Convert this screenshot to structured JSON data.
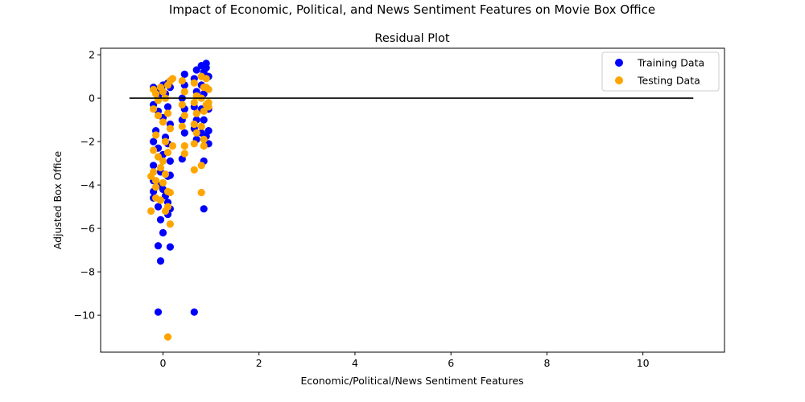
{
  "suptitle": "Impact of Economic, Political, and News Sentiment Features on Movie Box Office",
  "chart_data": {
    "type": "scatter",
    "title": "Residual Plot",
    "xlabel": "Economic/Political/News Sentiment Features",
    "ylabel": "Adjusted Box Office",
    "xlim": [
      -1.3,
      11.7
    ],
    "ylim": [
      -11.7,
      2.3
    ],
    "xticks": [
      0,
      2,
      4,
      6,
      8,
      10
    ],
    "xtick_labels": [
      "0",
      "2",
      "4",
      "6",
      "8",
      "10"
    ],
    "yticks": [
      2,
      0,
      -2,
      -4,
      -6,
      -8,
      -10
    ],
    "ytick_labels": [
      "2",
      "0",
      "−2",
      "−4",
      "−6",
      "−8",
      "−10"
    ],
    "grid": false,
    "legend_position": "top-right",
    "hline": {
      "y": 0,
      "xmin": -0.7,
      "xmax": 11.05,
      "color": "#000000"
    },
    "series": [
      {
        "name": "Training Data",
        "color": "#0000ff",
        "points": [
          [
            -0.2,
            0.5
          ],
          [
            -0.15,
            0.3
          ],
          [
            -0.1,
            0.1
          ],
          [
            -0.05,
            0.4
          ],
          [
            0.0,
            0.6
          ],
          [
            0.05,
            0.2
          ],
          [
            0.1,
            0.7
          ],
          [
            0.15,
            0.5
          ],
          [
            -0.2,
            -0.3
          ],
          [
            -0.1,
            -0.6
          ],
          [
            0.0,
            -0.9
          ],
          [
            0.1,
            -0.4
          ],
          [
            0.15,
            -1.2
          ],
          [
            -0.15,
            -1.5
          ],
          [
            0.05,
            -1.8
          ],
          [
            -0.2,
            -2.0
          ],
          [
            -0.1,
            -2.3
          ],
          [
            0.0,
            -2.6
          ],
          [
            0.1,
            -2.1
          ],
          [
            0.15,
            -2.9
          ],
          [
            -0.2,
            -3.1
          ],
          [
            -0.05,
            -3.4
          ],
          [
            0.1,
            -3.6
          ],
          [
            0.15,
            -3.55
          ],
          [
            -0.2,
            -3.8
          ],
          [
            -0.1,
            -4.0
          ],
          [
            0.0,
            -4.2
          ],
          [
            -0.2,
            -4.3
          ],
          [
            0.05,
            -4.5
          ],
          [
            -0.2,
            -4.6
          ],
          [
            0.1,
            -4.8
          ],
          [
            -0.1,
            -5.0
          ],
          [
            0.15,
            -5.1
          ],
          [
            0.1,
            -5.35
          ],
          [
            -0.05,
            -5.6
          ],
          [
            0.0,
            -6.2
          ],
          [
            -0.1,
            -6.8
          ],
          [
            0.15,
            -6.85
          ],
          [
            -0.05,
            -7.5
          ],
          [
            -0.1,
            -9.85
          ],
          [
            0.65,
            -9.85
          ],
          [
            0.45,
            1.1
          ],
          [
            0.45,
            0.6
          ],
          [
            0.4,
            0.0
          ],
          [
            0.45,
            -0.5
          ],
          [
            0.4,
            -1.0
          ],
          [
            0.45,
            -1.6
          ],
          [
            0.4,
            -2.8
          ],
          [
            0.65,
            0.9
          ],
          [
            0.7,
            0.3
          ],
          [
            0.65,
            -0.4
          ],
          [
            0.7,
            -1.0
          ],
          [
            0.65,
            -1.4
          ],
          [
            0.7,
            -1.9
          ],
          [
            0.8,
            1.5
          ],
          [
            0.85,
            1.2
          ],
          [
            0.8,
            0.6
          ],
          [
            0.85,
            0.2
          ],
          [
            0.8,
            -0.5
          ],
          [
            0.85,
            -1.0
          ],
          [
            0.8,
            -1.6
          ],
          [
            0.85,
            -2.9
          ],
          [
            0.85,
            -5.1
          ],
          [
            0.9,
            1.6
          ],
          [
            0.9,
            1.4
          ],
          [
            0.95,
            1.0
          ],
          [
            0.95,
            -0.5
          ],
          [
            0.95,
            -1.5
          ],
          [
            0.9,
            -1.75
          ],
          [
            0.95,
            -2.1
          ],
          [
            0.7,
            1.3
          ]
        ]
      },
      {
        "name": "Testing Data",
        "color": "#ffa500",
        "points": [
          [
            -0.2,
            0.4
          ],
          [
            -0.15,
            0.2
          ],
          [
            -0.1,
            -0.1
          ],
          [
            -0.05,
            0.5
          ],
          [
            0.0,
            0.3
          ],
          [
            0.05,
            0.0
          ],
          [
            0.1,
            0.6
          ],
          [
            0.15,
            0.8
          ],
          [
            0.2,
            0.9
          ],
          [
            -0.2,
            -0.5
          ],
          [
            -0.1,
            -0.8
          ],
          [
            0.0,
            -1.1
          ],
          [
            0.1,
            -0.7
          ],
          [
            0.15,
            -1.4
          ],
          [
            -0.15,
            -1.7
          ],
          [
            0.05,
            -2.0
          ],
          [
            -0.2,
            -2.4
          ],
          [
            -0.1,
            -2.7
          ],
          [
            0.0,
            -2.9
          ],
          [
            0.1,
            -2.5
          ],
          [
            0.2,
            -2.2
          ],
          [
            -0.2,
            -3.4
          ],
          [
            -0.05,
            -3.2
          ],
          [
            0.05,
            -3.5
          ],
          [
            -0.25,
            -3.6
          ],
          [
            -0.15,
            -3.8
          ],
          [
            0.0,
            -3.9
          ],
          [
            -0.15,
            -4.1
          ],
          [
            0.1,
            -4.3
          ],
          [
            0.15,
            -4.35
          ],
          [
            -0.15,
            -4.6
          ],
          [
            -0.05,
            -4.7
          ],
          [
            0.1,
            -5.0
          ],
          [
            0.05,
            -5.2
          ],
          [
            -0.25,
            -5.2
          ],
          [
            0.15,
            -5.8
          ],
          [
            0.1,
            -11.0
          ],
          [
            0.4,
            0.8
          ],
          [
            0.45,
            0.3
          ],
          [
            0.4,
            -0.3
          ],
          [
            0.45,
            -0.8
          ],
          [
            0.4,
            -1.3
          ],
          [
            0.45,
            -2.2
          ],
          [
            0.45,
            -2.55
          ],
          [
            0.65,
            0.7
          ],
          [
            0.7,
            0.1
          ],
          [
            0.65,
            -0.2
          ],
          [
            0.7,
            -0.7
          ],
          [
            0.65,
            -1.2
          ],
          [
            0.7,
            -1.6
          ],
          [
            0.65,
            -2.1
          ],
          [
            0.65,
            -3.3
          ],
          [
            0.8,
            1.0
          ],
          [
            0.85,
            0.5
          ],
          [
            0.8,
            0.0
          ],
          [
            0.85,
            -0.6
          ],
          [
            0.8,
            -1.3
          ],
          [
            0.85,
            -1.9
          ],
          [
            0.85,
            -2.2
          ],
          [
            0.8,
            -3.1
          ],
          [
            0.8,
            -4.35
          ],
          [
            0.9,
            0.9
          ],
          [
            0.95,
            0.4
          ],
          [
            0.9,
            -0.3
          ],
          [
            0.95,
            -0.4
          ],
          [
            0.95,
            -0.2
          ],
          [
            0.9,
            0.5
          ]
        ]
      }
    ]
  }
}
